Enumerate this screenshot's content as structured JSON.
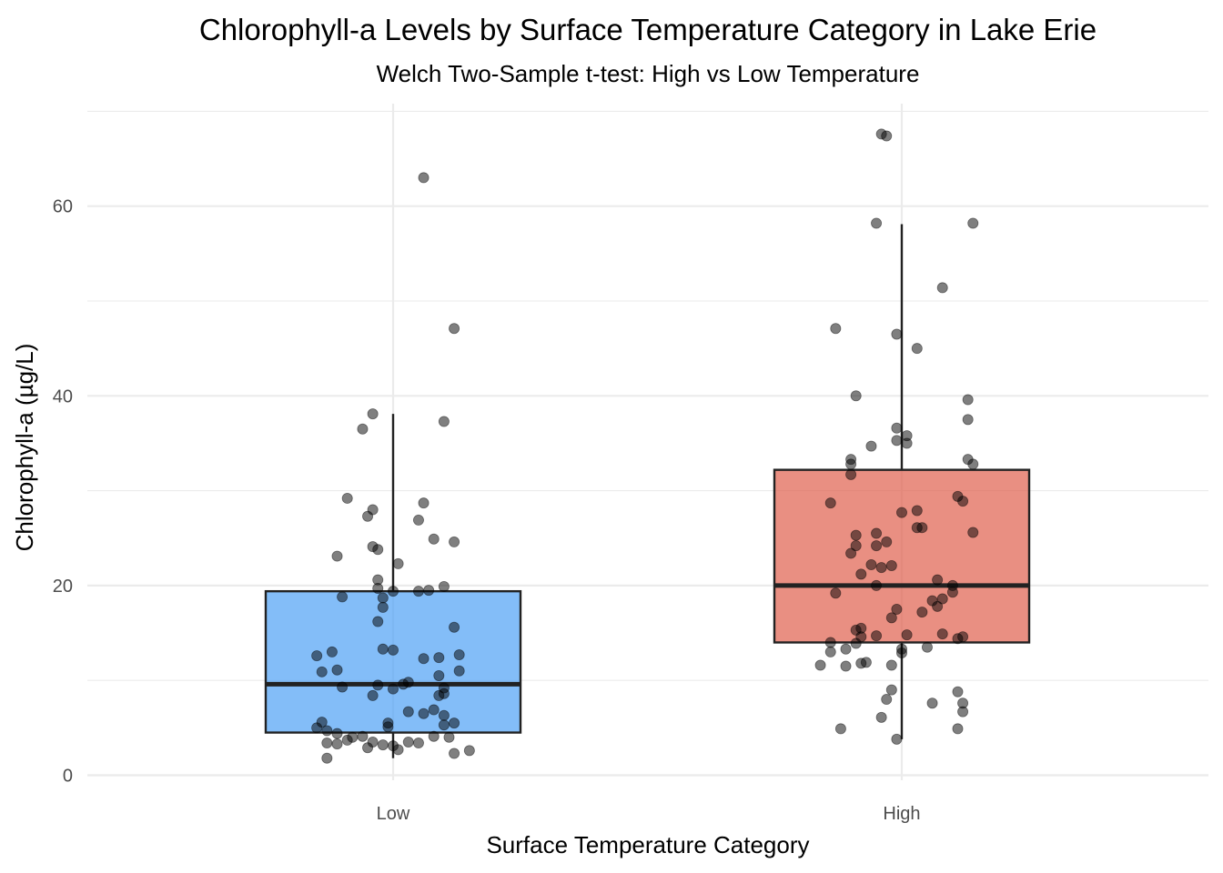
{
  "chart_data": {
    "type": "box",
    "title": "Chlorophyll-a Levels by Surface Temperature Category in Lake Erie",
    "subtitle": "Welch Two-Sample t-test: High vs Low Temperature",
    "xlabel": "Surface Temperature Category",
    "ylabel": "Chlorophyll-a (µg/L)",
    "categories": [
      "Low",
      "High"
    ],
    "ylim": [
      -0.5,
      70.5
    ],
    "yticks": [
      0,
      20,
      40,
      60
    ],
    "grid": true,
    "legend": "none",
    "colors": {
      "Low": "#4ea1f5",
      "High": "#e0604d",
      "points": "#000000",
      "box_line": "#222222"
    },
    "boxes": [
      {
        "category": "Low",
        "whisker_low": 1.8,
        "q1": 4.5,
        "median": 9.6,
        "q3": 19.4,
        "whisker_high": 38.1
      },
      {
        "category": "High",
        "whisker_low": 3.8,
        "q1": 14.0,
        "median": 20.0,
        "q3": 32.2,
        "whisker_high": 58.1
      }
    ],
    "points": {
      "Low": [
        [
          0.06,
          63.0
        ],
        [
          0.12,
          47.1
        ],
        [
          -0.04,
          38.1
        ],
        [
          -0.06,
          36.5
        ],
        [
          0.1,
          37.3
        ],
        [
          -0.09,
          29.2
        ],
        [
          -0.04,
          28.0
        ],
        [
          0.06,
          28.7
        ],
        [
          -0.05,
          27.3
        ],
        [
          0.05,
          26.9
        ],
        [
          0.08,
          24.9
        ],
        [
          0.12,
          24.6
        ],
        [
          -0.04,
          24.1
        ],
        [
          -0.03,
          23.8
        ],
        [
          -0.11,
          23.1
        ],
        [
          0.01,
          22.3
        ],
        [
          -0.03,
          20.6
        ],
        [
          -0.03,
          19.7
        ],
        [
          0.0,
          19.4
        ],
        [
          0.05,
          19.4
        ],
        [
          0.07,
          19.5
        ],
        [
          0.1,
          19.9
        ],
        [
          -0.1,
          18.8
        ],
        [
          -0.02,
          18.7
        ],
        [
          -0.02,
          17.7
        ],
        [
          -0.03,
          16.2
        ],
        [
          0.12,
          15.6
        ],
        [
          -0.02,
          13.3
        ],
        [
          0.0,
          13.2
        ],
        [
          -0.15,
          12.6
        ],
        [
          -0.12,
          13.0
        ],
        [
          0.06,
          12.3
        ],
        [
          0.09,
          12.4
        ],
        [
          0.13,
          12.7
        ],
        [
          -0.14,
          10.9
        ],
        [
          -0.11,
          11.1
        ],
        [
          0.09,
          10.5
        ],
        [
          0.13,
          11.0
        ],
        [
          0.03,
          9.8
        ],
        [
          0.02,
          9.6
        ],
        [
          -0.03,
          9.5
        ],
        [
          -0.1,
          9.3
        ],
        [
          0.0,
          9.1
        ],
        [
          0.1,
          9.2
        ],
        [
          -0.04,
          8.4
        ],
        [
          0.09,
          8.4
        ],
        [
          0.1,
          8.6
        ],
        [
          0.06,
          6.5
        ],
        [
          0.08,
          6.9
        ],
        [
          0.03,
          6.7
        ],
        [
          0.1,
          6.3
        ],
        [
          -0.14,
          5.6
        ],
        [
          -0.01,
          5.5
        ],
        [
          0.12,
          5.5
        ],
        [
          -0.15,
          5.0
        ],
        [
          -0.01,
          5.1
        ],
        [
          0.1,
          5.3
        ],
        [
          -0.13,
          4.7
        ],
        [
          -0.11,
          4.4
        ],
        [
          -0.08,
          4.0
        ],
        [
          -0.06,
          4.1
        ],
        [
          0.08,
          4.1
        ],
        [
          0.11,
          4.0
        ],
        [
          -0.13,
          3.4
        ],
        [
          -0.09,
          3.7
        ],
        [
          -0.04,
          3.5
        ],
        [
          -0.02,
          3.2
        ],
        [
          0.0,
          3.1
        ],
        [
          0.03,
          3.5
        ],
        [
          0.05,
          3.4
        ],
        [
          -0.11,
          3.3
        ],
        [
          -0.05,
          2.9
        ],
        [
          0.01,
          2.7
        ],
        [
          0.12,
          2.3
        ],
        [
          0.15,
          2.6
        ],
        [
          -0.13,
          1.8
        ]
      ],
      "High": [
        [
          -0.04,
          67.6
        ],
        [
          -0.03,
          67.4
        ],
        [
          -0.05,
          58.2
        ],
        [
          0.14,
          58.2
        ],
        [
          0.08,
          51.4
        ],
        [
          -0.13,
          47.1
        ],
        [
          -0.01,
          46.5
        ],
        [
          0.03,
          45.0
        ],
        [
          -0.09,
          40.0
        ],
        [
          0.13,
          39.6
        ],
        [
          0.13,
          37.5
        ],
        [
          -0.01,
          36.6
        ],
        [
          0.01,
          35.8
        ],
        [
          -0.01,
          35.3
        ],
        [
          0.01,
          35.0
        ],
        [
          -0.06,
          34.7
        ],
        [
          -0.1,
          33.3
        ],
        [
          -0.1,
          32.8
        ],
        [
          0.13,
          33.3
        ],
        [
          0.14,
          32.8
        ],
        [
          -0.1,
          31.7
        ],
        [
          0.11,
          29.4
        ],
        [
          0.12,
          28.9
        ],
        [
          -0.14,
          28.7
        ],
        [
          0.03,
          27.9
        ],
        [
          -0.0,
          27.7
        ],
        [
          0.04,
          26.1
        ],
        [
          0.03,
          26.1
        ],
        [
          0.14,
          25.6
        ],
        [
          -0.05,
          25.5
        ],
        [
          -0.09,
          25.3
        ],
        [
          -0.05,
          24.2
        ],
        [
          -0.03,
          24.6
        ],
        [
          -0.09,
          24.2
        ],
        [
          -0.1,
          23.4
        ],
        [
          -0.02,
          22.1
        ],
        [
          -0.06,
          22.2
        ],
        [
          -0.04,
          21.9
        ],
        [
          -0.08,
          21.2
        ],
        [
          0.07,
          20.6
        ],
        [
          -0.05,
          20.0
        ],
        [
          0.1,
          20.0
        ],
        [
          0.1,
          19.3
        ],
        [
          -0.13,
          19.2
        ],
        [
          0.08,
          18.6
        ],
        [
          0.06,
          18.4
        ],
        [
          0.07,
          17.8
        ],
        [
          -0.01,
          17.5
        ],
        [
          0.04,
          17.2
        ],
        [
          -0.02,
          16.6
        ],
        [
          -0.09,
          15.3
        ],
        [
          -0.08,
          15.5
        ],
        [
          0.08,
          14.9
        ],
        [
          0.01,
          14.8
        ],
        [
          -0.05,
          14.7
        ],
        [
          -0.08,
          14.6
        ],
        [
          0.11,
          14.4
        ],
        [
          0.12,
          14.6
        ],
        [
          -0.14,
          14.0
        ],
        [
          -0.09,
          13.9
        ],
        [
          -0.11,
          13.3
        ],
        [
          0.0,
          13.3
        ],
        [
          -0.14,
          13.0
        ],
        [
          0.05,
          13.5
        ],
        [
          0.0,
          12.9
        ],
        [
          -0.08,
          11.8
        ],
        [
          -0.07,
          11.9
        ],
        [
          -0.11,
          11.5
        ],
        [
          -0.16,
          11.6
        ],
        [
          -0.02,
          11.6
        ],
        [
          -0.02,
          9.0
        ],
        [
          0.11,
          8.8
        ],
        [
          -0.03,
          8.0
        ],
        [
          0.12,
          7.6
        ],
        [
          0.06,
          7.6
        ],
        [
          0.12,
          6.7
        ],
        [
          -0.04,
          6.1
        ],
        [
          -0.12,
          4.9
        ],
        [
          0.11,
          4.9
        ],
        [
          -0.01,
          3.8
        ]
      ]
    }
  }
}
